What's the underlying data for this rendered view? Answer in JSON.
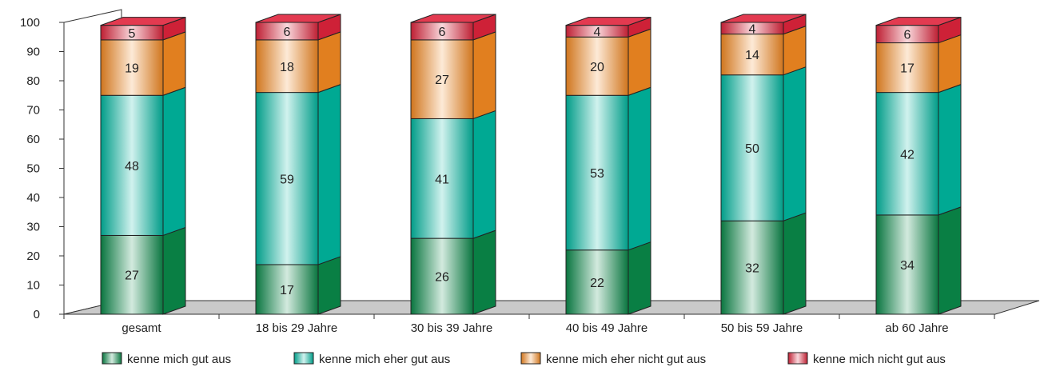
{
  "chart_data": {
    "type": "bar",
    "stacked": true,
    "categories": [
      "gesamt",
      "18 bis 29 Jahre",
      "30 bis 39 Jahre",
      "40 bis 49 Jahre",
      "50 bis 59 Jahre",
      "ab 60 Jahre"
    ],
    "series": [
      {
        "name": "kenne mich gut aus",
        "values": [
          27,
          17,
          26,
          22,
          32,
          34
        ],
        "color": "#0a8a4a"
      },
      {
        "name": "kenne mich eher gut aus",
        "values": [
          48,
          59,
          41,
          53,
          50,
          42
        ],
        "color": "#00b8a0"
      },
      {
        "name": "kenne mich eher nicht gut aus",
        "values": [
          19,
          18,
          27,
          20,
          14,
          17
        ],
        "color": "#f58a22"
      },
      {
        "name": "kenne mich nicht gut aus",
        "values": [
          5,
          6,
          6,
          4,
          4,
          6
        ],
        "color": "#e0243c"
      }
    ],
    "ylim": [
      0,
      100
    ],
    "yticks": [
      0,
      10,
      20,
      30,
      40,
      50,
      60,
      70,
      80,
      90,
      100
    ],
    "legend_position": "bottom",
    "grid": false,
    "style": "3d"
  }
}
